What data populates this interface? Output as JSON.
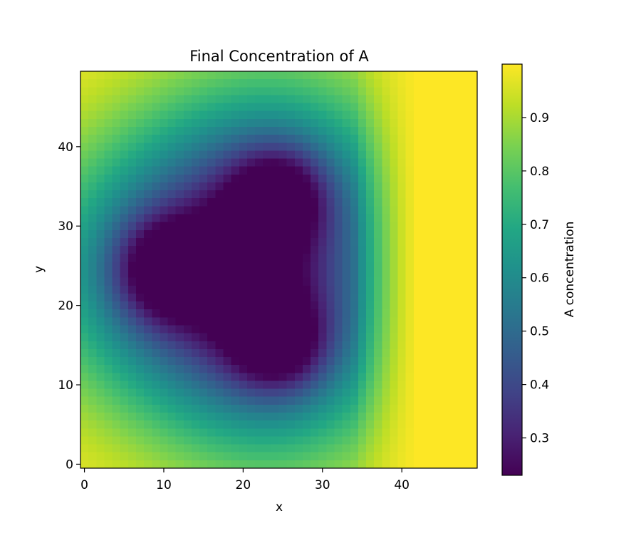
{
  "chart_data": {
    "type": "heatmap",
    "title": "Final Concentration of A",
    "xlabel": "x",
    "ylabel": "y",
    "grid": {
      "nx": 50,
      "ny": 50
    },
    "xlim": [
      -0.5,
      49.5
    ],
    "ylim": [
      -0.5,
      49.5
    ],
    "x_ticks": [
      0,
      10,
      20,
      30,
      40
    ],
    "y_ticks": [
      0,
      10,
      20,
      30,
      40
    ],
    "colormap": "viridis",
    "value_range": [
      0.23,
      1.0
    ],
    "colorbar": {
      "label": "A concentration",
      "ticks": [
        0.3,
        0.4,
        0.5,
        0.6,
        0.7,
        0.8,
        0.9
      ]
    },
    "features": [
      {
        "type": "minimum",
        "x": 10,
        "y": 24.5,
        "value": 0.23
      },
      {
        "type": "minimum",
        "x": 24.5,
        "y": 34,
        "value": 0.23
      },
      {
        "type": "minimum",
        "x": 24.5,
        "y": 15,
        "value": 0.23
      }
    ],
    "field_description": "values near 1.0 at the outer edges and right side (x > 40), decreasing toward three dark minima; intermediate region around the minima ~0.4-0.5",
    "origin": "lower",
    "grid_lines": false,
    "colors": {
      "frame": "#000000",
      "background": "#ffffff"
    }
  }
}
